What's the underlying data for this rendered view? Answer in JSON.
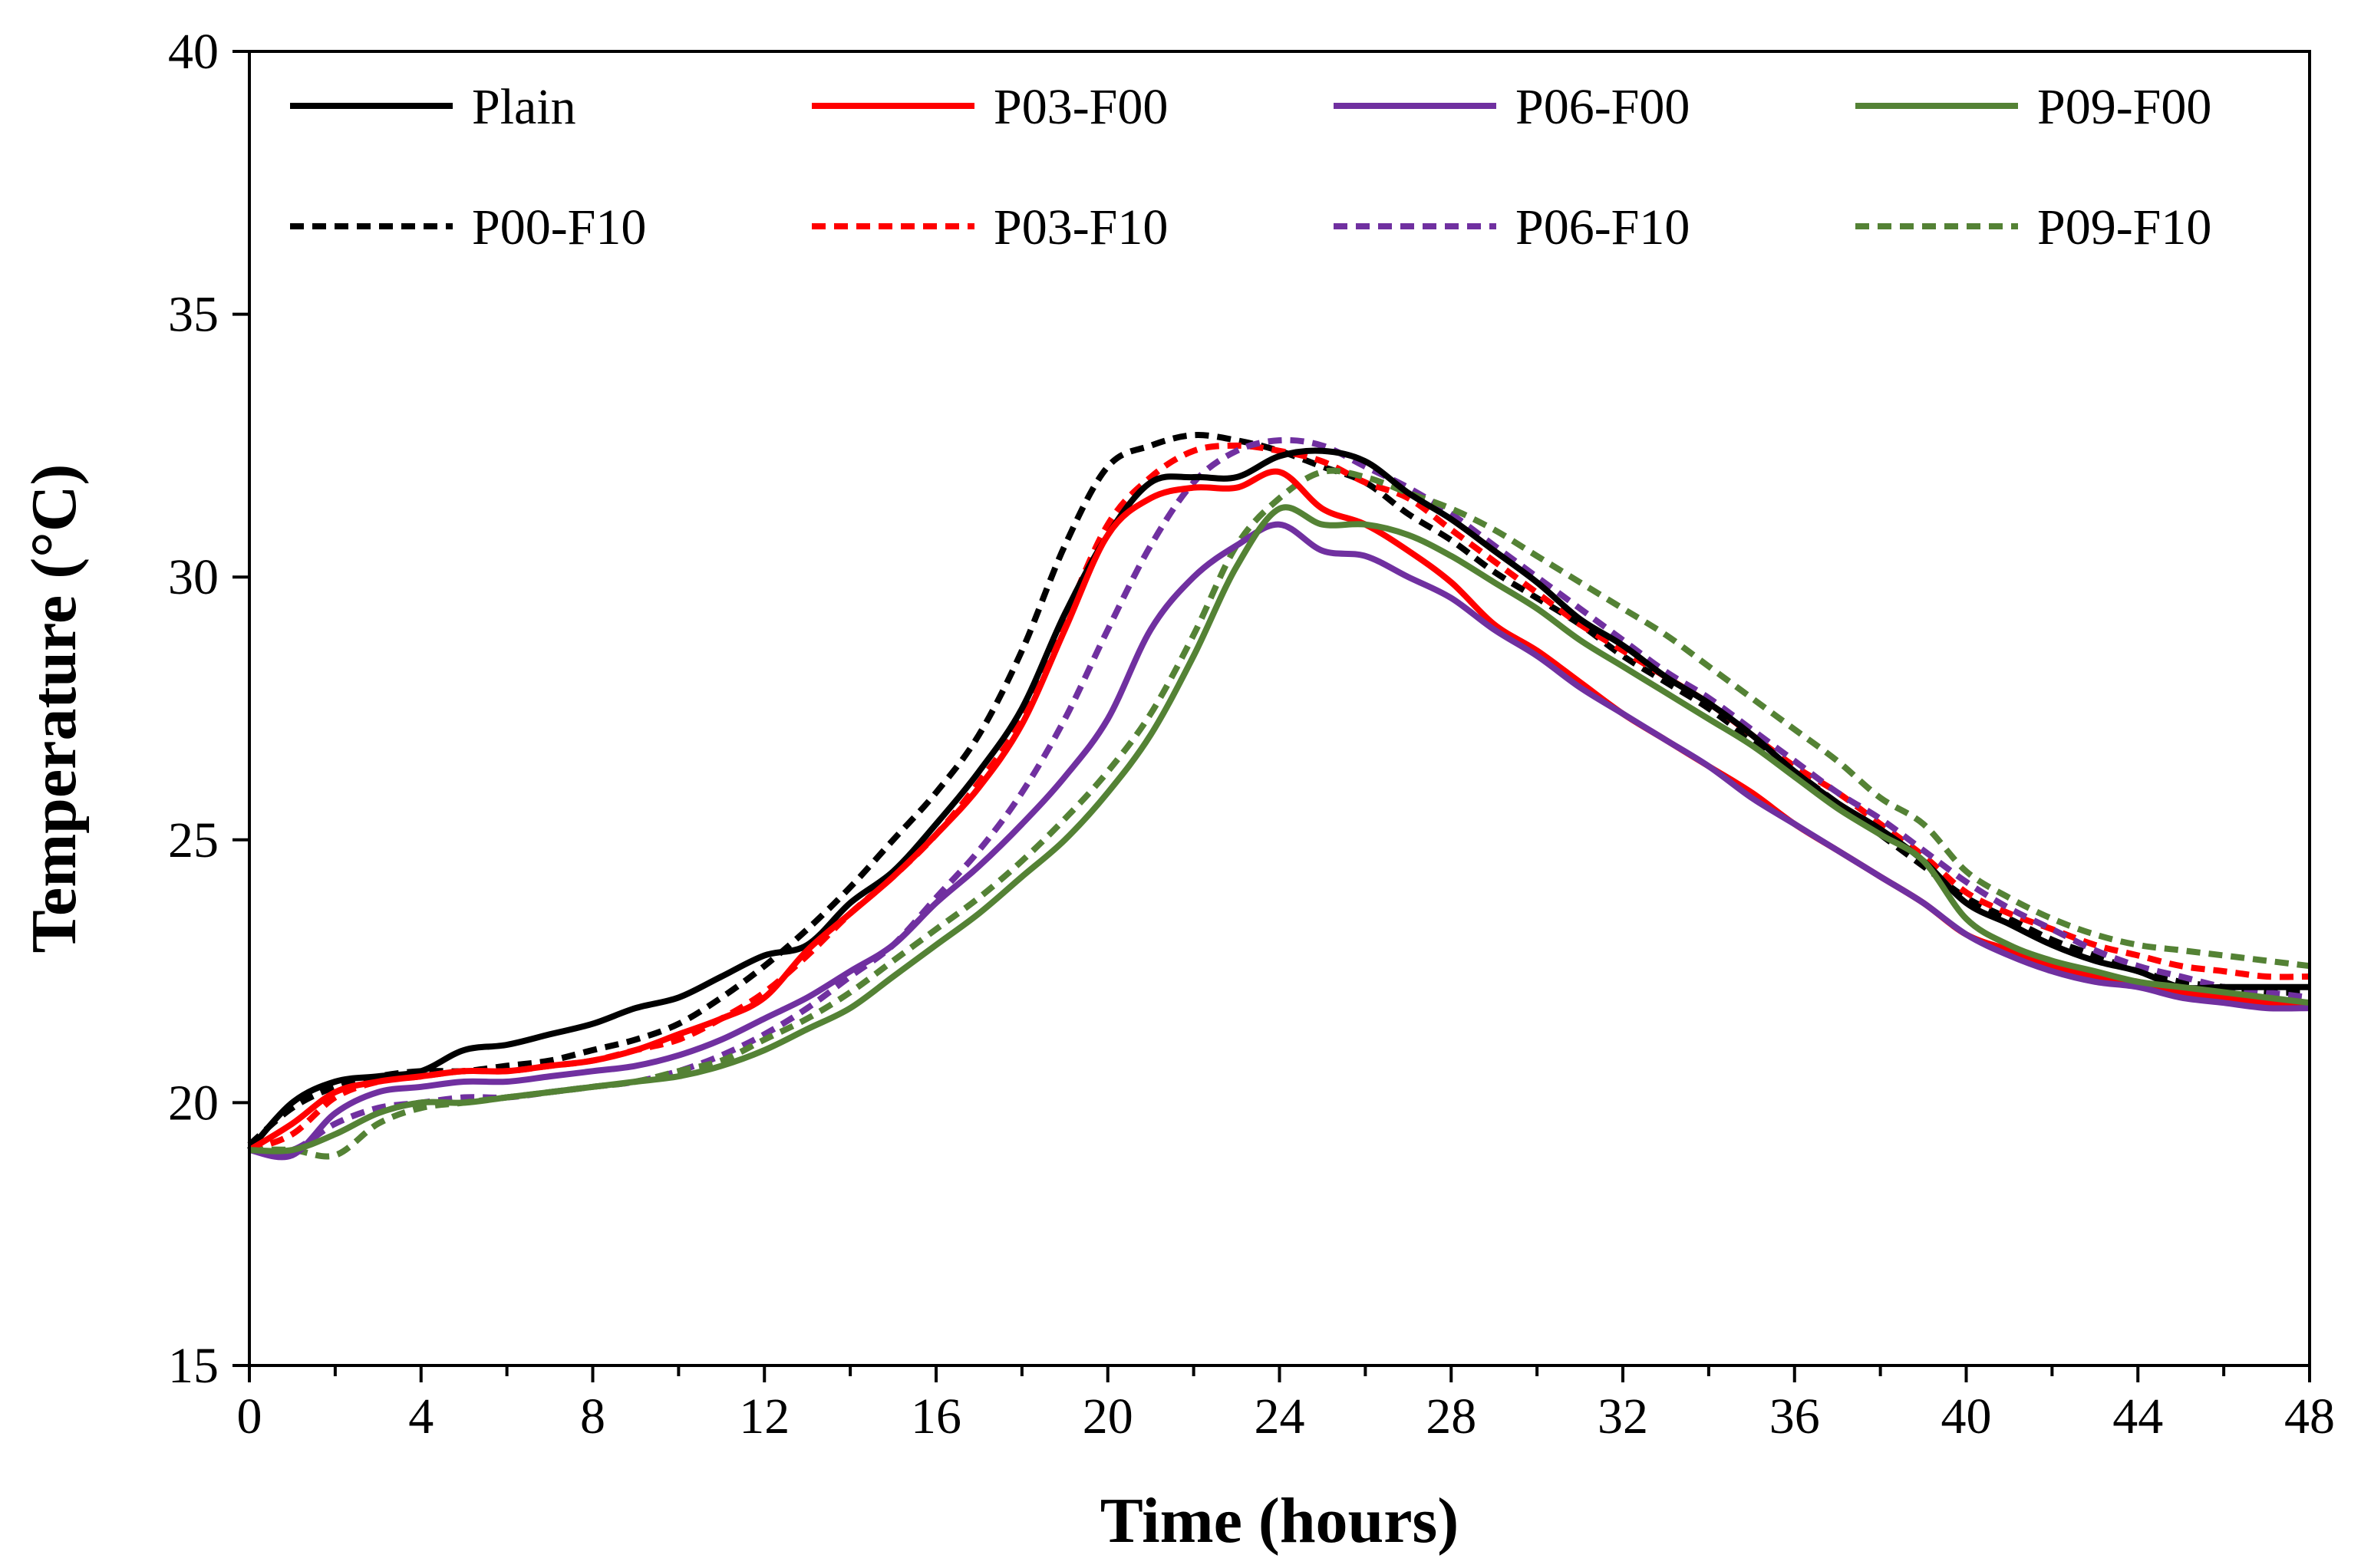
{
  "chart_data": {
    "type": "line",
    "title": "",
    "xlabel": "Time (hours)",
    "ylabel": "Temperature (°C)",
    "xlim": [
      0,
      48
    ],
    "ylim": [
      15,
      40
    ],
    "xticks": [
      0,
      4,
      8,
      12,
      16,
      20,
      24,
      28,
      32,
      36,
      40,
      44,
      48
    ],
    "yticks": [
      15,
      20,
      25,
      30,
      35,
      40
    ],
    "grid": false,
    "legend_position": "top",
    "series": [
      {
        "name": "Plain",
        "color": "#000000",
        "dash": "solid",
        "x": [
          0,
          1,
          2,
          3,
          4,
          5,
          6,
          7,
          8,
          9,
          10,
          11,
          12,
          13,
          14,
          15,
          16,
          17,
          18,
          19,
          20,
          21,
          22,
          23,
          24,
          25,
          26,
          27,
          28,
          29,
          30,
          31,
          32,
          33,
          34,
          35,
          36,
          37,
          38,
          39,
          40,
          41,
          42,
          43,
          44,
          45,
          46,
          47,
          48
        ],
        "y": [
          19.1,
          20.0,
          20.4,
          20.5,
          20.6,
          21.0,
          21.1,
          21.3,
          21.5,
          21.8,
          22.0,
          22.4,
          22.8,
          23.0,
          23.8,
          24.4,
          25.3,
          26.3,
          27.5,
          29.3,
          30.8,
          31.8,
          31.9,
          31.9,
          32.3,
          32.4,
          32.2,
          31.6,
          31.1,
          30.5,
          29.9,
          29.2,
          28.7,
          28.1,
          27.6,
          27.0,
          26.3,
          25.7,
          25.2,
          24.6,
          23.8,
          23.4,
          23.0,
          22.7,
          22.5,
          22.2,
          22.2,
          22.2,
          22.2
        ]
      },
      {
        "name": "P03-F00",
        "color": "#ff0000",
        "dash": "solid",
        "x": [
          0,
          1,
          2,
          3,
          4,
          5,
          6,
          7,
          8,
          9,
          10,
          11,
          12,
          13,
          14,
          15,
          16,
          17,
          18,
          19,
          20,
          21,
          22,
          23,
          24,
          25,
          26,
          27,
          28,
          29,
          30,
          31,
          32,
          33,
          34,
          35,
          36,
          37,
          38,
          39,
          40,
          41,
          42,
          43,
          44,
          45,
          46,
          47,
          48
        ],
        "y": [
          19.1,
          19.6,
          20.2,
          20.4,
          20.5,
          20.6,
          20.6,
          20.7,
          20.8,
          21.0,
          21.3,
          21.6,
          22.0,
          22.9,
          23.6,
          24.3,
          25.1,
          26.0,
          27.2,
          29.0,
          30.8,
          31.5,
          31.7,
          31.7,
          32.0,
          31.3,
          31.0,
          30.5,
          29.9,
          29.1,
          28.6,
          28.0,
          27.4,
          26.9,
          26.4,
          25.9,
          25.3,
          24.8,
          24.3,
          23.8,
          23.2,
          22.9,
          22.6,
          22.4,
          22.3,
          22.1,
          22.0,
          21.9,
          21.9
        ]
      },
      {
        "name": "P06-F00",
        "color": "#7030a0",
        "dash": "solid",
        "x": [
          0,
          1,
          2,
          3,
          4,
          5,
          6,
          7,
          8,
          9,
          10,
          11,
          12,
          13,
          14,
          15,
          16,
          17,
          18,
          19,
          20,
          21,
          22,
          23,
          24,
          25,
          26,
          27,
          28,
          29,
          30,
          31,
          32,
          33,
          34,
          35,
          36,
          37,
          38,
          39,
          40,
          41,
          42,
          43,
          44,
          45,
          46,
          47,
          48
        ],
        "y": [
          19.1,
          19.0,
          19.8,
          20.2,
          20.3,
          20.4,
          20.4,
          20.5,
          20.6,
          20.7,
          20.9,
          21.2,
          21.6,
          22.0,
          22.5,
          23.0,
          23.8,
          24.5,
          25.3,
          26.2,
          27.3,
          29.0,
          30.0,
          30.6,
          31.0,
          30.5,
          30.4,
          30.0,
          29.6,
          29.0,
          28.5,
          27.9,
          27.4,
          26.9,
          26.4,
          25.8,
          25.3,
          24.8,
          24.3,
          23.8,
          23.2,
          22.8,
          22.5,
          22.3,
          22.2,
          22.0,
          21.9,
          21.8,
          21.8
        ]
      },
      {
        "name": "P09-F00",
        "color": "#548235",
        "dash": "solid",
        "x": [
          0,
          1,
          2,
          3,
          4,
          5,
          6,
          7,
          8,
          9,
          10,
          11,
          12,
          13,
          14,
          15,
          16,
          17,
          18,
          19,
          20,
          21,
          22,
          23,
          24,
          25,
          26,
          27,
          28,
          29,
          30,
          31,
          32,
          33,
          34,
          35,
          36,
          37,
          38,
          39,
          40,
          41,
          42,
          43,
          44,
          45,
          46,
          47,
          48
        ],
        "y": [
          19.1,
          19.1,
          19.4,
          19.8,
          20.0,
          20.0,
          20.1,
          20.2,
          20.3,
          20.4,
          20.5,
          20.7,
          21.0,
          21.4,
          21.8,
          22.4,
          23.0,
          23.6,
          24.3,
          25.0,
          25.9,
          27.0,
          28.5,
          30.2,
          31.3,
          31.0,
          31.0,
          30.8,
          30.4,
          29.9,
          29.4,
          28.8,
          28.3,
          27.8,
          27.3,
          26.8,
          26.2,
          25.6,
          25.1,
          24.6,
          23.5,
          23.0,
          22.7,
          22.5,
          22.3,
          22.2,
          22.1,
          22.0,
          21.9
        ]
      },
      {
        "name": "P00-F10",
        "color": "#000000",
        "dash": "dashed",
        "x": [
          0,
          1,
          2,
          3,
          4,
          5,
          6,
          7,
          8,
          9,
          10,
          11,
          12,
          13,
          14,
          15,
          16,
          17,
          18,
          19,
          20,
          21,
          22,
          23,
          24,
          25,
          26,
          27,
          28,
          29,
          30,
          31,
          32,
          33,
          34,
          35,
          36,
          37,
          38,
          39,
          40,
          41,
          42,
          43,
          44,
          45,
          46,
          47,
          48
        ],
        "y": [
          19.2,
          19.9,
          20.3,
          20.5,
          20.6,
          20.6,
          20.7,
          20.8,
          21.0,
          21.2,
          21.5,
          22.0,
          22.6,
          23.3,
          24.1,
          25.0,
          25.9,
          27.0,
          28.6,
          30.6,
          32.1,
          32.5,
          32.7,
          32.6,
          32.4,
          32.1,
          31.8,
          31.2,
          30.7,
          30.1,
          29.6,
          29.1,
          28.5,
          28.0,
          27.5,
          26.9,
          26.3,
          25.7,
          25.1,
          24.5,
          23.9,
          23.5,
          23.1,
          22.8,
          22.5,
          22.3,
          22.2,
          22.1,
          22.1
        ]
      },
      {
        "name": "P03-F10",
        "color": "#ff0000",
        "dash": "dashed",
        "x": [
          0,
          1,
          2,
          3,
          4,
          5,
          6,
          7,
          8,
          9,
          10,
          11,
          12,
          13,
          14,
          15,
          16,
          17,
          18,
          19,
          20,
          21,
          22,
          23,
          24,
          25,
          26,
          27,
          28,
          29,
          30,
          31,
          32,
          33,
          34,
          35,
          36,
          37,
          38,
          39,
          40,
          41,
          42,
          43,
          44,
          45,
          46,
          47,
          48
        ],
        "y": [
          19.1,
          19.4,
          20.1,
          20.4,
          20.5,
          20.6,
          20.6,
          20.7,
          20.8,
          21.0,
          21.2,
          21.6,
          22.1,
          22.8,
          23.6,
          24.3,
          25.1,
          26.1,
          27.3,
          29.2,
          31.0,
          31.9,
          32.4,
          32.5,
          32.4,
          32.2,
          31.8,
          31.5,
          30.9,
          30.3,
          29.7,
          29.1,
          28.6,
          28.1,
          27.6,
          27.0,
          26.4,
          25.9,
          25.3,
          24.7,
          24.0,
          23.6,
          23.3,
          23.0,
          22.8,
          22.6,
          22.5,
          22.4,
          22.4
        ]
      },
      {
        "name": "P06-F10",
        "color": "#7030a0",
        "dash": "dashed",
        "x": [
          0,
          1,
          2,
          3,
          4,
          5,
          6,
          7,
          8,
          9,
          10,
          11,
          12,
          13,
          14,
          15,
          16,
          17,
          18,
          19,
          20,
          21,
          22,
          23,
          24,
          25,
          26,
          27,
          28,
          29,
          30,
          31,
          32,
          33,
          34,
          35,
          36,
          37,
          38,
          39,
          40,
          41,
          42,
          43,
          44,
          45,
          46,
          47,
          48
        ],
        "y": [
          19.1,
          19.1,
          19.6,
          19.9,
          20.0,
          20.1,
          20.1,
          20.2,
          20.3,
          20.4,
          20.6,
          20.9,
          21.3,
          21.8,
          22.4,
          23.0,
          23.9,
          24.8,
          25.9,
          27.3,
          29.0,
          30.6,
          31.8,
          32.4,
          32.6,
          32.5,
          32.1,
          31.7,
          31.2,
          30.6,
          30.0,
          29.4,
          28.8,
          28.2,
          27.7,
          27.1,
          26.5,
          25.9,
          25.4,
          24.8,
          24.2,
          23.7,
          23.3,
          22.9,
          22.6,
          22.4,
          22.2,
          22.1,
          22.0
        ]
      },
      {
        "name": "P09-F10",
        "color": "#548235",
        "dash": "dashed",
        "x": [
          0,
          1,
          2,
          3,
          4,
          5,
          6,
          7,
          8,
          9,
          10,
          11,
          12,
          13,
          14,
          15,
          16,
          17,
          18,
          19,
          20,
          21,
          22,
          23,
          24,
          25,
          26,
          27,
          28,
          29,
          30,
          31,
          32,
          33,
          34,
          35,
          36,
          37,
          38,
          39,
          40,
          41,
          42,
          43,
          44,
          45,
          46,
          47,
          48
        ],
        "y": [
          19.1,
          19.1,
          19.0,
          19.6,
          19.9,
          20.0,
          20.1,
          20.2,
          20.3,
          20.4,
          20.6,
          20.8,
          21.2,
          21.6,
          22.1,
          22.7,
          23.3,
          23.9,
          24.6,
          25.4,
          26.3,
          27.4,
          28.9,
          30.6,
          31.5,
          32.0,
          31.9,
          31.6,
          31.3,
          30.9,
          30.4,
          29.9,
          29.4,
          28.9,
          28.3,
          27.7,
          27.1,
          26.5,
          25.8,
          25.3,
          24.4,
          23.9,
          23.5,
          23.2,
          23.0,
          22.9,
          22.8,
          22.7,
          22.6
        ]
      }
    ]
  }
}
